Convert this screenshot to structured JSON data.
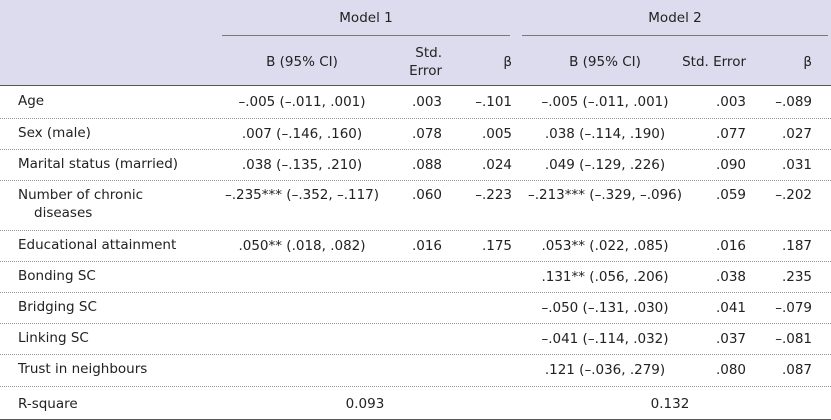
{
  "table": {
    "header": {
      "model1": "Model 1",
      "model2": "Model 2",
      "columns": [
        "B (95% CI)",
        "Std. Error",
        "β"
      ]
    },
    "rows": [
      {
        "label": "Age",
        "model1": [
          "–.005 (–.011, .001)",
          ".003",
          "–.101"
        ],
        "model2": [
          "–.005 (–.011, .001)",
          ".003",
          "–.089"
        ]
      },
      {
        "label": "Sex (male)",
        "model1": [
          ".007 (–.146, .160)",
          ".078",
          ".005"
        ],
        "model2": [
          ".038 (–.114, .190)",
          ".077",
          ".027"
        ]
      },
      {
        "label": "Marital status (married)",
        "model1": [
          ".038 (–.135, .210)",
          ".088",
          ".024"
        ],
        "model2": [
          ".049 (–.129, .226)",
          ".090",
          ".031"
        ]
      },
      {
        "label": "Number of chronic diseases",
        "model1": [
          "–.235*** (–.352, –.117)",
          ".060",
          "–.223"
        ],
        "model2": [
          "–.213*** (–.329, –.096)",
          ".059",
          "–.202"
        ]
      },
      {
        "label": "Educational attainment",
        "model1": [
          ".050** (.018, .082)",
          ".016",
          ".175"
        ],
        "model2": [
          ".053** (.022, .085)",
          ".016",
          ".187"
        ]
      },
      {
        "label": "Bonding SC",
        "model1": null,
        "model2": [
          ".131** (.056, .206)",
          ".038",
          ".235"
        ]
      },
      {
        "label": "Bridging SC",
        "model1": null,
        "model2": [
          "–.050 (–.131, .030)",
          ".041",
          "–.079"
        ]
      },
      {
        "label": "Linking SC",
        "model1": null,
        "model2": [
          "–.041 (–.114, .032)",
          ".037",
          "–.081"
        ]
      },
      {
        "label": "Trust in neighbours",
        "model1": null,
        "model2": [
          ".121 (–.036, .279)",
          ".080",
          ".087"
        ]
      }
    ],
    "r_square": {
      "label": "R-square",
      "model1": "0.093",
      "model2": "0.132"
    }
  }
}
